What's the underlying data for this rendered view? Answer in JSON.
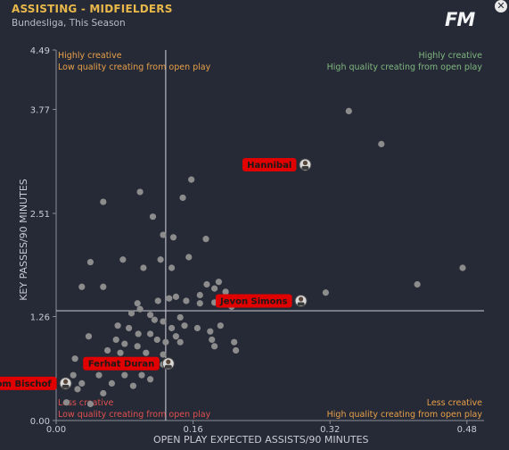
{
  "header": {
    "title": "ASSISTING - MIDFIELDERS",
    "subtitle": "Bundesliga, This Season",
    "logo": "FM"
  },
  "chart_data": {
    "type": "scatter",
    "xlabel": "OPEN PLAY EXPECTED ASSISTS/90 MINUTES",
    "ylabel": "KEY PASSES/90 MINUTES",
    "xlim": [
      0,
      0.5
    ],
    "ylim": [
      0,
      4.49
    ],
    "xticks": [
      "0.00",
      "0.16",
      "0.32",
      "0.48"
    ],
    "yticks": [
      "0.00",
      "1.26",
      "2.51",
      "3.77",
      "4.49"
    ],
    "xtick_values": [
      0,
      0.16,
      0.32,
      0.48
    ],
    "ytick_values": [
      0,
      1.26,
      2.51,
      3.77,
      4.49
    ],
    "ref_lines": {
      "x": 0.128,
      "y": 1.33
    },
    "quadrants": {
      "top_left": [
        "Highly creative",
        "Low quality creating from open play"
      ],
      "top_right": [
        "Highly creative",
        "High quality creating from open play"
      ],
      "bottom_left": [
        "Less creative",
        "Low quality creating from open play"
      ],
      "bottom_right": [
        "Less creative",
        "High quality creating from open play"
      ]
    },
    "colors": {
      "low_quality": "#e8a04a",
      "high_quality": "#7fb77f",
      "label_bg": "#e00000",
      "point": "#8c8c8c"
    },
    "labelled_points": [
      {
        "name": "Hannibal",
        "x": 0.29,
        "y": 3.1
      },
      {
        "name": "Jevon Simons",
        "x": 0.285,
        "y": 1.45
      },
      {
        "name": "Ferhat Duran",
        "x": 0.13,
        "y": 0.69
      },
      {
        "name": "Tom Bischof",
        "x": 0.01,
        "y": 0.45
      }
    ],
    "points": [
      [
        0.342,
        3.75
      ],
      [
        0.38,
        3.35
      ],
      [
        0.475,
        1.85
      ],
      [
        0.422,
        1.65
      ],
      [
        0.315,
        1.55
      ],
      [
        0.098,
        2.77
      ],
      [
        0.055,
        2.65
      ],
      [
        0.158,
        2.92
      ],
      [
        0.148,
        2.7
      ],
      [
        0.113,
        2.47
      ],
      [
        0.125,
        2.25
      ],
      [
        0.137,
        2.22
      ],
      [
        0.175,
        2.2
      ],
      [
        0.122,
        1.95
      ],
      [
        0.155,
        1.98
      ],
      [
        0.078,
        1.95
      ],
      [
        0.04,
        1.92
      ],
      [
        0.102,
        1.85
      ],
      [
        0.135,
        1.85
      ],
      [
        0.03,
        1.62
      ],
      [
        0.055,
        1.62
      ],
      [
        0.19,
        1.68
      ],
      [
        0.185,
        1.6
      ],
      [
        0.176,
        1.65
      ],
      [
        0.198,
        1.56
      ],
      [
        0.168,
        1.52
      ],
      [
        0.14,
        1.5
      ],
      [
        0.152,
        1.45
      ],
      [
        0.132,
        1.48
      ],
      [
        0.119,
        1.45
      ],
      [
        0.095,
        1.42
      ],
      [
        0.168,
        1.42
      ],
      [
        0.185,
        1.43
      ],
      [
        0.205,
        1.38
      ],
      [
        0.098,
        1.35
      ],
      [
        0.088,
        1.3
      ],
      [
        0.11,
        1.28
      ],
      [
        0.115,
        1.22
      ],
      [
        0.145,
        1.25
      ],
      [
        0.125,
        1.2
      ],
      [
        0.135,
        1.12
      ],
      [
        0.15,
        1.15
      ],
      [
        0.165,
        1.12
      ],
      [
        0.192,
        1.15
      ],
      [
        0.18,
        1.08
      ],
      [
        0.072,
        1.15
      ],
      [
        0.085,
        1.12
      ],
      [
        0.096,
        1.05
      ],
      [
        0.11,
        1.05
      ],
      [
        0.14,
        1.02
      ],
      [
        0.145,
        0.95
      ],
      [
        0.118,
        0.98
      ],
      [
        0.128,
        0.95
      ],
      [
        0.182,
        0.98
      ],
      [
        0.208,
        0.95
      ],
      [
        0.038,
        1.02
      ],
      [
        0.07,
        0.98
      ],
      [
        0.08,
        0.93
      ],
      [
        0.095,
        0.9
      ],
      [
        0.185,
        0.9
      ],
      [
        0.21,
        0.85
      ],
      [
        0.06,
        0.85
      ],
      [
        0.075,
        0.82
      ],
      [
        0.105,
        0.82
      ],
      [
        0.125,
        0.8
      ],
      [
        0.068,
        0.72
      ],
      [
        0.09,
        0.7
      ],
      [
        0.11,
        0.7
      ],
      [
        0.125,
        0.68
      ],
      [
        0.022,
        0.75
      ],
      [
        0.04,
        0.65
      ],
      [
        0.02,
        0.55
      ],
      [
        0.05,
        0.55
      ],
      [
        0.08,
        0.55
      ],
      [
        0.1,
        0.55
      ],
      [
        0.11,
        0.5
      ],
      [
        0.03,
        0.45
      ],
      [
        0.065,
        0.45
      ],
      [
        0.09,
        0.42
      ],
      [
        0.025,
        0.38
      ],
      [
        0.055,
        0.33
      ],
      [
        0.012,
        0.22
      ],
      [
        0.04,
        0.2
      ]
    ]
  }
}
